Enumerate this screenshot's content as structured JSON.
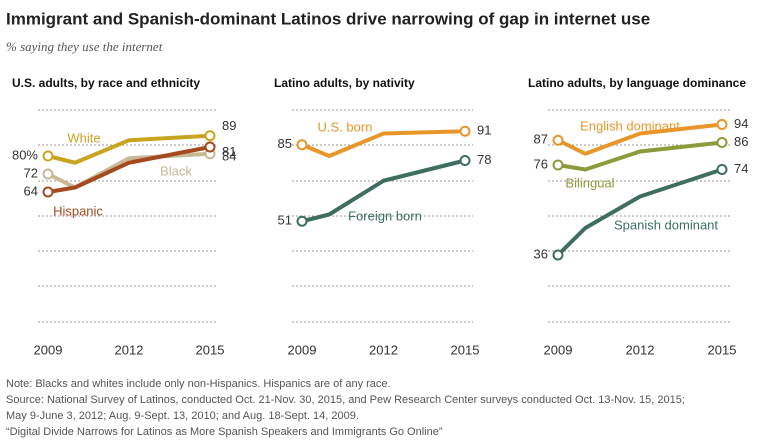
{
  "title": "Immigrant and Spanish-dominant Latinos drive narrowing of gap in internet use",
  "subtitle": "% saying they use the internet",
  "notes": [
    "Note: Blacks and whites include only non-Hispanics. Hispanics are of any race.",
    "Source: National Survey of Latinos, conducted Oct. 21-Nov. 30, 2015, and Pew Research Center surveys conducted Oct. 13-Nov. 15, 2015;",
    "May 9-June 3, 2012; Aug. 9-Sept. 13, 2010; and Aug. 18-Sept. 14, 2009.",
    "“Digital Divide Narrows for Latinos as More Spanish Speakers and Immigrants Go Online”"
  ],
  "chart_data": [
    {
      "type": "line",
      "title": "U.S. adults, by race and ethnicity",
      "x": [
        2009,
        2010,
        2012,
        2015
      ],
      "xlim": [
        2009,
        2015
      ],
      "xticks": [
        2009,
        2012,
        2015
      ],
      "ylim": [
        0,
        100
      ],
      "grid": true,
      "series": [
        {
          "name": "White",
          "color": "#c9a41f",
          "values": [
            80,
            77,
            87,
            89
          ],
          "value_labels": [
            "80%",
            null,
            null,
            "89"
          ]
        },
        {
          "name": "Black",
          "color": "#c9b895",
          "values": [
            72,
            66,
            79,
            81
          ]
        },
        {
          "name": "Hispanic",
          "color": "#a34a1f",
          "values": [
            64,
            66,
            77,
            84
          ]
        }
      ]
    },
    {
      "type": "line",
      "title": "Latino adults, by nativity",
      "x": [
        2009,
        2010,
        2012,
        2015
      ],
      "xlim": [
        2009,
        2015
      ],
      "xticks": [
        2009,
        2012,
        2015
      ],
      "ylim": [
        0,
        100
      ],
      "grid": true,
      "series": [
        {
          "name": "U.S. born",
          "color": "#e8962a",
          "values": [
            85,
            80,
            90,
            91
          ]
        },
        {
          "name": "Foreign born",
          "color": "#3e6e5c",
          "values": [
            51,
            54,
            69,
            78
          ]
        }
      ]
    },
    {
      "type": "line",
      "title": "Latino adults, by language dominance",
      "x": [
        2009,
        2010,
        2012,
        2015
      ],
      "xlim": [
        2009,
        2015
      ],
      "xticks": [
        2009,
        2012,
        2015
      ],
      "ylim": [
        0,
        100
      ],
      "grid": true,
      "series": [
        {
          "name": "English dominant",
          "color": "#e8962a",
          "values": [
            87,
            81,
            90,
            94
          ]
        },
        {
          "name": "Bilingual",
          "color": "#8a9b3a",
          "values": [
            76,
            74,
            82,
            86
          ]
        },
        {
          "name": "Spanish dominant",
          "color": "#3e6e5c",
          "values": [
            36,
            48,
            62,
            74
          ]
        }
      ]
    }
  ]
}
